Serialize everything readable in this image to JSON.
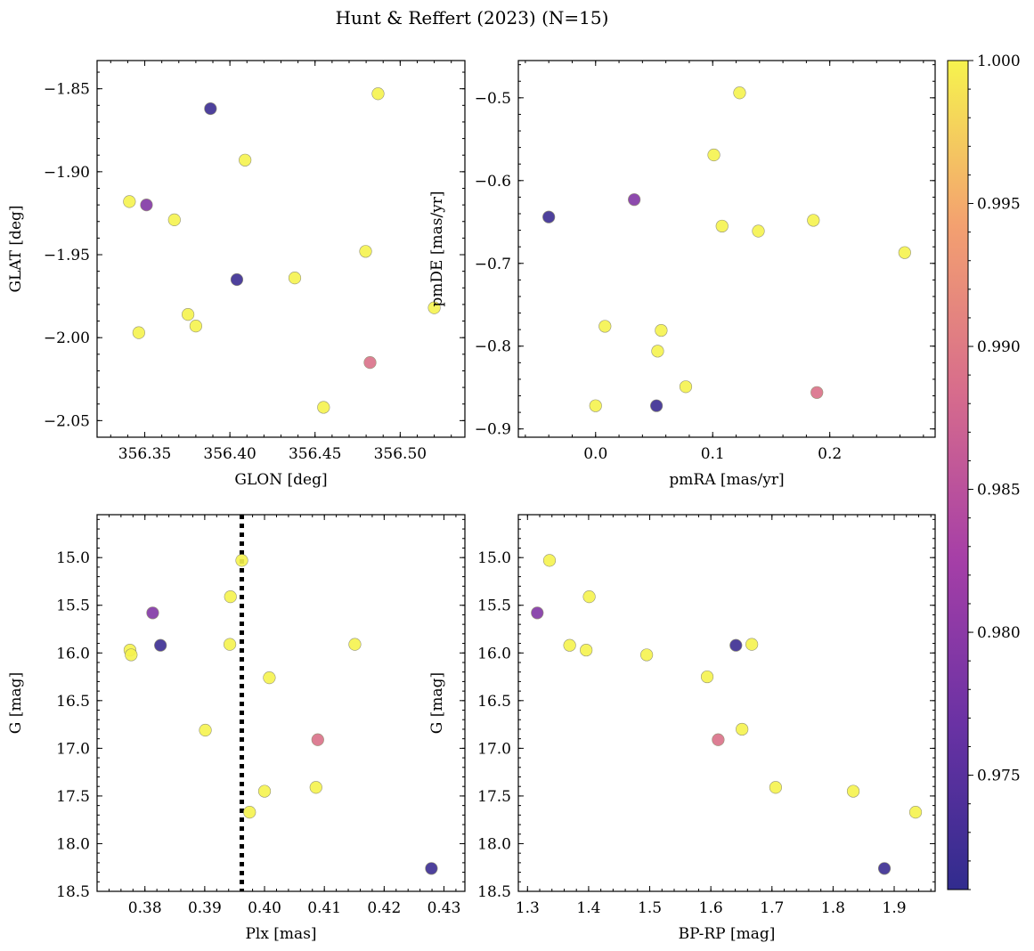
{
  "title": "Hunt & Reffert (2023) (N=15)",
  "colorbar": {
    "min": 0.971,
    "max": 1.0,
    "ticks": [
      0.975,
      0.98,
      0.985,
      0.99,
      0.995,
      1.0
    ],
    "tick_labels": [
      "0.975",
      "0.980",
      "0.985",
      "0.990",
      "0.995",
      "1.000"
    ],
    "colormap": "plasma"
  },
  "chart_data": [
    {
      "id": "pos",
      "type": "scatter",
      "xlabel": "GLON [deg]",
      "ylabel": "GLAT [deg]",
      "xlim": [
        356.322,
        356.538
      ],
      "ylim": [
        -2.06,
        -1.833
      ],
      "y_inverted": false,
      "xticks": [
        356.35,
        356.4,
        356.45,
        356.5
      ],
      "xtick_labels": [
        "356.35",
        "356.40",
        "356.45",
        "356.50"
      ],
      "yticks": [
        -2.05,
        -2.0,
        -1.95,
        -1.9,
        -1.85
      ],
      "ytick_labels": [
        "−2.05",
        "−2.00",
        "−1.95",
        "−1.90",
        "−1.85"
      ],
      "x": [
        356.3886,
        356.487,
        356.4089,
        356.341,
        356.351,
        356.3674,
        356.4797,
        356.4041,
        356.4381,
        356.52,
        356.3754,
        356.38,
        356.3465,
        356.4823,
        356.455
      ],
      "y": [
        -1.862,
        -1.853,
        -1.893,
        -1.918,
        -1.92,
        -1.929,
        -1.948,
        -1.965,
        -1.964,
        -1.982,
        -1.986,
        -1.993,
        -1.997,
        -2.015,
        -2.042
      ],
      "c": [
        0.972,
        1.0,
        1.0,
        1.0,
        0.979,
        1.0,
        1.0,
        0.972,
        1.0,
        1.0,
        1.0,
        1.0,
        1.0,
        0.989,
        1.0
      ]
    },
    {
      "id": "pm",
      "type": "scatter",
      "xlabel": "pmRA [mas/yr]",
      "ylabel": "pmDE [mas/yr]",
      "xlim": [
        -0.066,
        0.29
      ],
      "ylim": [
        -0.91,
        -0.455
      ],
      "y_inverted": false,
      "xticks": [
        0.0,
        0.1,
        0.2
      ],
      "xtick_labels": [
        "0.0",
        "0.1",
        "0.2"
      ],
      "yticks": [
        -0.9,
        -0.8,
        -0.7,
        -0.6,
        -0.5
      ],
      "ytick_labels": [
        "−0.9",
        "−0.8",
        "−0.7",
        "−0.6",
        "−0.5"
      ],
      "x": [
        0.123,
        0.101,
        -0.04,
        0.033,
        0.108,
        0.139,
        0.186,
        0.264,
        0.008,
        0.056,
        0.053,
        0.077,
        0.189,
        0.0,
        0.052
      ],
      "y": [
        -0.494,
        -0.569,
        -0.644,
        -0.623,
        -0.655,
        -0.661,
        -0.648,
        -0.687,
        -0.776,
        -0.781,
        -0.806,
        -0.849,
        -0.856,
        -0.872,
        -0.872
      ],
      "c": [
        1.0,
        1.0,
        0.972,
        0.979,
        1.0,
        1.0,
        1.0,
        1.0,
        1.0,
        1.0,
        1.0,
        1.0,
        0.989,
        1.0,
        0.972
      ]
    },
    {
      "id": "plx",
      "type": "scatter",
      "xlabel": "Plx [mas]",
      "ylabel": "G [mag]",
      "xlim": [
        0.372,
        0.4335
      ],
      "ylim": [
        14.55,
        18.5
      ],
      "y_inverted": true,
      "xticks": [
        0.38,
        0.39,
        0.4,
        0.41,
        0.42,
        0.43
      ],
      "xtick_labels": [
        "0.38",
        "0.39",
        "0.40",
        "0.41",
        "0.42",
        "0.43"
      ],
      "yticks": [
        15.0,
        15.5,
        16.0,
        16.5,
        17.0,
        17.5,
        18.0,
        18.5
      ],
      "ytick_labels": [
        "15.0",
        "15.5",
        "16.0",
        "16.5",
        "17.0",
        "17.5",
        "18.0",
        "18.5"
      ],
      "vline": 0.3962,
      "x": [
        0.3962,
        0.3943,
        0.3813,
        0.3775,
        0.3777,
        0.3826,
        0.3942,
        0.4151,
        0.4008,
        0.3901,
        0.4089,
        0.4086,
        0.4,
        0.3975,
        0.4279
      ],
      "y": [
        15.03,
        15.41,
        15.58,
        15.97,
        16.02,
        15.92,
        15.91,
        15.91,
        16.26,
        16.81,
        16.91,
        17.41,
        17.45,
        17.67,
        18.26
      ],
      "c": [
        1.0,
        1.0,
        0.979,
        1.0,
        1.0,
        0.972,
        1.0,
        1.0,
        1.0,
        1.0,
        0.989,
        1.0,
        1.0,
        1.0,
        0.972
      ]
    },
    {
      "id": "cmd",
      "type": "scatter",
      "xlabel": "BP-RP [mag]",
      "ylabel": "G [mag]",
      "xlim": [
        1.285,
        1.967
      ],
      "ylim": [
        14.55,
        18.5
      ],
      "y_inverted": true,
      "xticks": [
        1.3,
        1.4,
        1.5,
        1.6,
        1.7,
        1.8,
        1.9
      ],
      "xtick_labels": [
        "1.3",
        "1.4",
        "1.5",
        "1.6",
        "1.7",
        "1.8",
        "1.9"
      ],
      "yticks": [
        15.0,
        15.5,
        16.0,
        16.5,
        17.0,
        17.5,
        18.0,
        18.5
      ],
      "ytick_labels": [
        "15.0",
        "15.5",
        "16.0",
        "16.5",
        "17.0",
        "17.5",
        "18.0",
        "18.5"
      ],
      "x": [
        1.336,
        1.401,
        1.316,
        1.369,
        1.396,
        1.495,
        1.641,
        1.667,
        1.594,
        1.651,
        1.612,
        1.706,
        1.833,
        1.935,
        1.884
      ],
      "y": [
        15.03,
        15.41,
        15.58,
        15.92,
        15.97,
        16.02,
        15.92,
        15.91,
        16.25,
        16.8,
        16.91,
        17.41,
        17.45,
        17.67,
        18.26
      ],
      "c": [
        1.0,
        1.0,
        0.979,
        1.0,
        1.0,
        1.0,
        0.972,
        1.0,
        1.0,
        1.0,
        0.989,
        1.0,
        1.0,
        1.0,
        0.972
      ]
    }
  ]
}
